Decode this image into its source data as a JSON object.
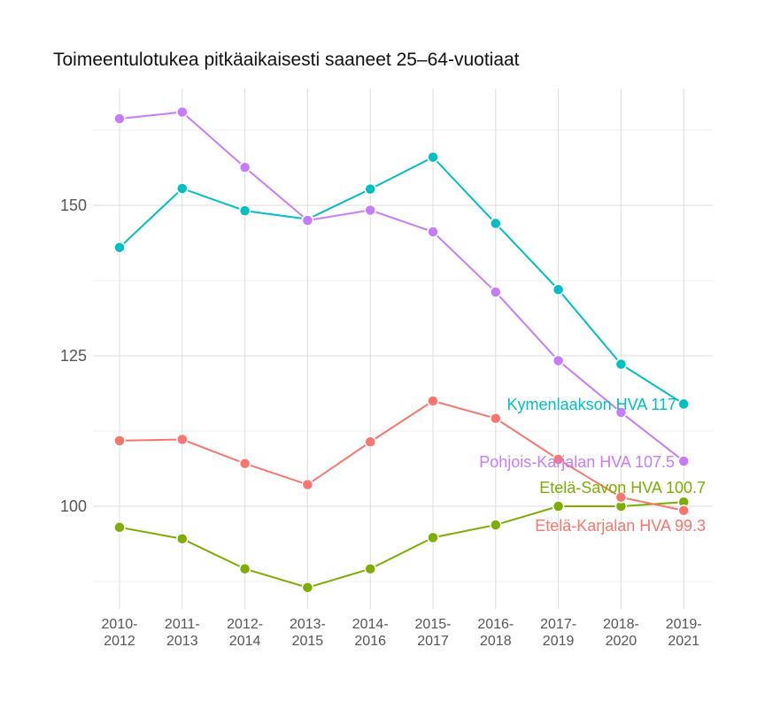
{
  "chart_data": {
    "type": "line",
    "title": "Toimeentulotukea pitkäaikaisesti saaneet 25–64-vuotiaat",
    "xlabel": "",
    "ylabel": "",
    "categories": [
      "2010-\n2012",
      "2011-\n2013",
      "2012-\n2014",
      "2013-\n2015",
      "2014-\n2016",
      "2015-\n2017",
      "2016-\n2018",
      "2017-\n2019",
      "2018-\n2020",
      "2019-\n2021"
    ],
    "yticks": [
      100,
      125,
      150
    ],
    "ylim": [
      83,
      168
    ],
    "grid": true,
    "legend": "end-labels",
    "series": [
      {
        "name": "Kymenlaakson HVA",
        "end_label": "Kymenlaakson HVA 117",
        "color": "#00BFC4",
        "values": [
          143.0,
          152.8,
          149.1,
          147.7,
          152.7,
          158.0,
          147.0,
          136.0,
          123.6,
          117.0
        ]
      },
      {
        "name": "Pohjois-Karjalan HVA",
        "end_label": "Pohjois-Karjalan HVA 107.5",
        "color": "#C77CFF",
        "values": [
          164.4,
          165.5,
          156.3,
          147.5,
          149.2,
          145.6,
          135.6,
          124.2,
          115.6,
          107.5
        ]
      },
      {
        "name": "Etelä-Savon HVA",
        "end_label": "Etelä-Savon HVA 100.7",
        "color": "#7CAE00",
        "values": [
          96.5,
          94.6,
          89.6,
          86.5,
          89.6,
          94.8,
          96.9,
          100.0,
          100.0,
          100.7
        ]
      },
      {
        "name": "Etelä-Karjalan HVA",
        "end_label": "Etelä-Karjalan HVA 99.3",
        "color": "#F8766D",
        "values": [
          110.9,
          111.1,
          107.1,
          103.6,
          110.7,
          117.5,
          114.6,
          107.8,
          101.5,
          99.3
        ]
      }
    ]
  }
}
